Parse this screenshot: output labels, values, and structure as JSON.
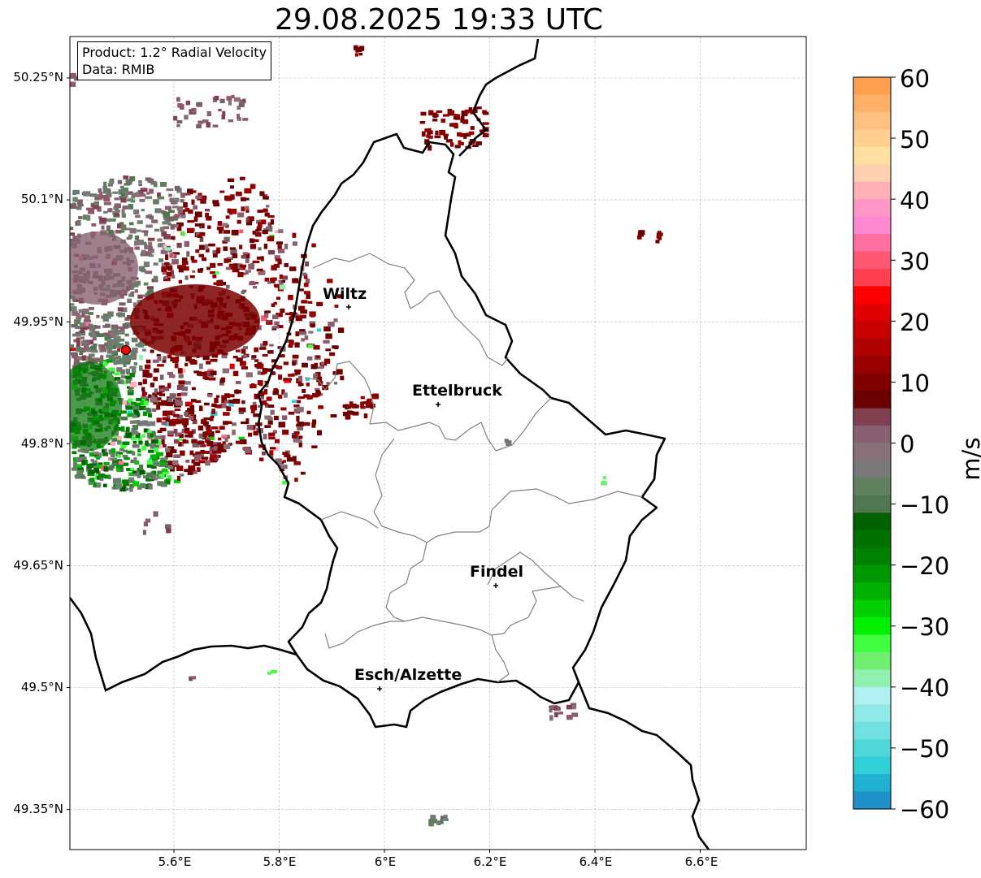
{
  "title": "29.08.2025 19:33 UTC",
  "info_box": {
    "product": "Product: 1.2° Radial Velocity",
    "data_source": "Data: RMIB"
  },
  "axes": {
    "latitude_ticks": [
      "50.25°N",
      "50.1°N",
      "49.95°N",
      "49.8°N",
      "49.65°N",
      "49.5°N",
      "49.35°N"
    ],
    "longitude_ticks": [
      "5.6°E",
      "5.8°E",
      "6°E",
      "6.2°E",
      "6.4°E",
      "6.6°E"
    ],
    "grid": true
  },
  "cities": [
    {
      "name": "Wiltz"
    },
    {
      "name": "Ettelbruck"
    },
    {
      "name": "Findel"
    },
    {
      "name": "Esch/Alzette"
    }
  ],
  "radar_site": {
    "color": "#ff0000"
  },
  "colorbar": {
    "unit": "m/s",
    "range": [
      -60,
      60
    ],
    "ticks": [
      "60",
      "50",
      "40",
      "30",
      "20",
      "10",
      "0",
      "−10",
      "−20",
      "−30",
      "−40",
      "−50",
      "−60"
    ],
    "colors": [
      "#ffa050",
      "#ffb068",
      "#ffc080",
      "#ffd090",
      "#ffe0a0",
      "#ffd0b0",
      "#ffb0b8",
      "#ff98c8",
      "#ff88d0",
      "#ff70a0",
      "#ff5870",
      "#ff4050",
      "#ff0000",
      "#e00000",
      "#c80000",
      "#b00000",
      "#980000",
      "#800000",
      "#6a0000",
      "#804050",
      "#886070",
      "#887078",
      "#787878",
      "#608060",
      "#507850",
      "#006000",
      "#007000",
      "#008000",
      "#009800",
      "#00b000",
      "#00d000",
      "#00f000",
      "#40ff40",
      "#70f070",
      "#90f0b0",
      "#b0f0f0",
      "#90e8e8",
      "#70e0e0",
      "#50d8d8",
      "#30d0d8",
      "#20b0d0",
      "#2090c8"
    ]
  }
}
